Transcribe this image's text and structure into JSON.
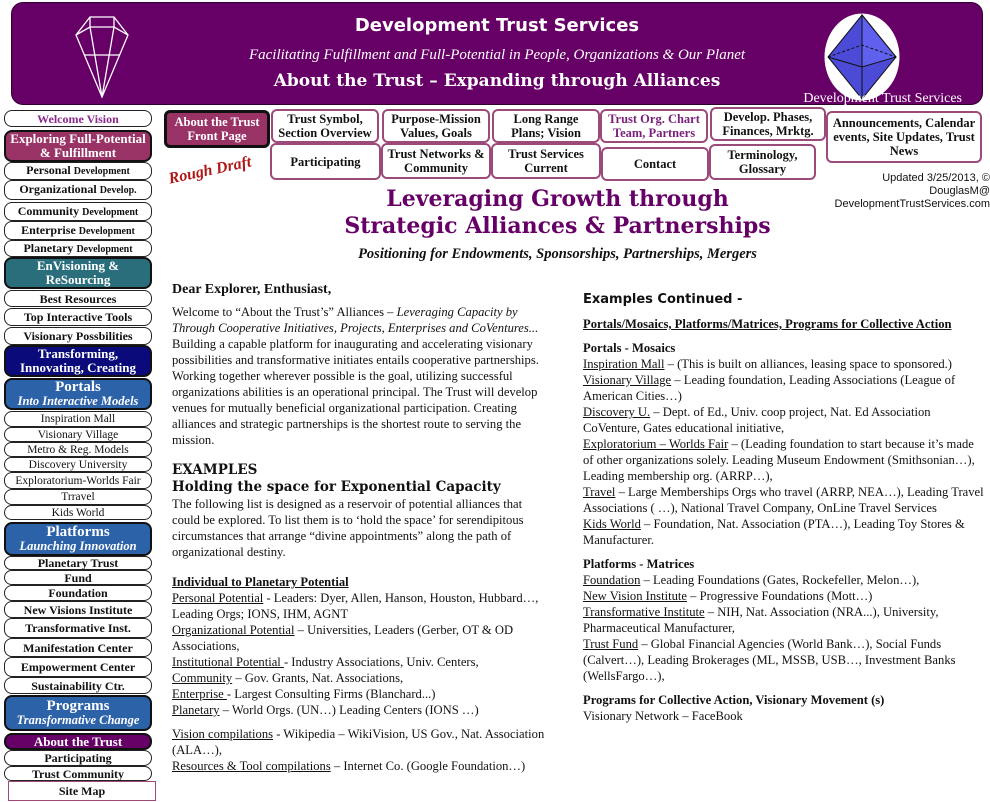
{
  "header": {
    "title": "Development Trust Services",
    "tagline": "Facilitating Fulfillment and Full-Potential in People, Organizations & Our Planet",
    "subtitle": "About the Trust – Expanding through Alliances",
    "brand": "Development Trust Services",
    "left_logo": "diamond-icon",
    "right_logo": "octahedron-icon",
    "color": "#660066"
  },
  "nav": [
    {
      "label": "About the Trust Front Page",
      "active": true
    },
    {
      "label": "Trust Symbol, Section Overview"
    },
    {
      "label": "Purpose-Mission Values, Goals"
    },
    {
      "label": "Long Range Plans; Vision"
    },
    {
      "label": "Trust Org. Chart Team, Partners"
    },
    {
      "label": "Develop. Phases, Finances, Mrktg."
    },
    {
      "label": "Announcements, Calendar events, Site Updates, Trust News"
    },
    {
      "label": "Participating"
    },
    {
      "label": "Trust Networks & Community"
    },
    {
      "label": "Trust Services Current"
    },
    {
      "label": "Contact"
    },
    {
      "label": "Terminology, Glossary"
    }
  ],
  "rough_draft": "Rough Draft",
  "updated": "Updated 3/25/2013, © DouglasM@ DevelopmentTrustServices.com",
  "sidebar": [
    {
      "label": "Welcome Vision",
      "style": "welcome"
    },
    {
      "label": "Exploring Full-Potential & Fulfillment",
      "style": "head",
      "color": "#993366"
    },
    {
      "label": "Personal",
      "small": "Development"
    },
    {
      "label": "Organizational",
      "small": "Develop."
    },
    {
      "label": "Community",
      "small": "Development"
    },
    {
      "label": "Enterprise",
      "small": "Development"
    },
    {
      "label": "Planetary",
      "small": "Development"
    },
    {
      "label": "EnVisioning & ReSourcing",
      "style": "head",
      "color": "#2a6e7c"
    },
    {
      "label": "Best Resources"
    },
    {
      "label": "Top Interactive Tools"
    },
    {
      "label": "Visionary Possbilities"
    },
    {
      "label": "Transforming, Innovating, Creating",
      "style": "head",
      "color": "#0a0a7a"
    },
    {
      "label": "Portals",
      "sub": "Into Interactive Models",
      "style": "big",
      "color": "#2c62a8"
    },
    {
      "label": "Inspiration Mall",
      "style": "plain"
    },
    {
      "label": "Visionary Village",
      "style": "plain"
    },
    {
      "label": "Metro & Reg. Models",
      "style": "plain"
    },
    {
      "label": "Discovery University",
      "style": "plain"
    },
    {
      "label": "Exploratorium-Worlds Fair",
      "style": "plain"
    },
    {
      "label": "Trravel",
      "style": "plain"
    },
    {
      "label": "Kids World",
      "style": "plain"
    },
    {
      "label": "Platforms",
      "sub": "Launching Innovation",
      "style": "big",
      "color": "#2c62a8"
    },
    {
      "label": "Planetary Trust"
    },
    {
      "label": "Fund"
    },
    {
      "label": "Foundation"
    },
    {
      "label": "New Visions Institute"
    },
    {
      "label": "Transformative Inst."
    },
    {
      "label": "Manifestation Center"
    },
    {
      "label": "Empowerment Center"
    },
    {
      "label": "Sustainability Ctr."
    },
    {
      "label": "Programs",
      "sub": "Transformative Change",
      "style": "big",
      "color": "#2c62a8"
    },
    {
      "label": "About the Trust",
      "style": "head",
      "color": "#660066"
    },
    {
      "label": "Participating"
    },
    {
      "label": "Trust Community"
    },
    {
      "label": "Site Map",
      "style": "sitemap"
    }
  ],
  "main": {
    "title_line1": "Leveraging Growth through",
    "title_line2": "Strategic Alliances & Partnerships",
    "subtitle": "Positioning for Endowments, Sponsorships, Partnerships, Mergers",
    "greeting": "Dear Explorer, Enthusiast,",
    "intro_plain": "Welcome to “About the Trust’s” Alliances – ",
    "intro_italic": "Leveraging Capacity by Through Cooperative Initiatives, Projects, Enterprises and CoVentures...",
    "intro_rest": "  Building a capable platform for inaugurating and accelerating visionary possibilities and transformative initiates entails cooperative partnerships. Working together wherever possible is the goal, utilizing successful organizations abilities is an operational principal. The Trust will develop venues for mutually beneficial organizational participation. Creating alliances and strategic partnerships is the shortest route to serving the mission.",
    "examples_heading": "EXAMPLES",
    "examples_subheading": "Holding the space for Exponential Capacity",
    "examples_text": "The following list is designed as a reservoir of potential alliances that could be explored. To list them is to ‘hold the space’ for serendipitous circumstances that arrange “divine appointments” along the path of organizational destiny.",
    "individual_heading": "Individual to Planetary Potential",
    "individual_items": [
      {
        "term": "Personal Potential",
        "text": " - Leaders: Dyer, Allen, Hanson, Houston, Hubbard…, Leading Orgs; IONS, IHM, AGNT"
      },
      {
        "term": "Organizational Potential",
        "text": " – Universities, Leaders (Gerber, OT & OD Associations,"
      },
      {
        "term": "Institutional Potential ",
        "text": " - Industry Associations, Univ. Centers,"
      },
      {
        "term": "Community",
        "text": " – Gov. Grants, Nat. Associations,"
      },
      {
        "term": "Enterprise ",
        "text": " - Largest Consulting Firms (Blanchard...)"
      },
      {
        "term": "Planetary",
        "text": " – World Orgs. (UN…) Leading Centers (IONS …)"
      }
    ],
    "compilations": [
      {
        "term": "Vision compilations",
        "text": " - Wikipedia – WikiVision, US Gov., Nat. Association (ALA…),"
      },
      {
        "term": "Resources & Tool compilations",
        "text": " – Internet Co. (Google Foundation…)"
      }
    ],
    "continued_heading": "Examples Continued -",
    "continued_sub": "Portals/Mosaics, Platforms/Matrices, Programs for Collective Action",
    "portals_heading": "Portals - Mosaics",
    "portals_items": [
      {
        "term": "Inspiration Mall",
        "text": " – (This is built on alliances, leasing space to sponsored.)"
      },
      {
        "term": "Visionary Village",
        "text": " – Leading foundation, Leading Associations (League of American Cities…)"
      },
      {
        "term": "Discovery U.",
        "text": " – Dept. of Ed.,  Univ. coop project, Nat.  Ed Association CoVenture, Gates educational initiative,"
      },
      {
        "term": "Exploratorium – Worlds Fair",
        "text": " – (Leading foundation to start because it’s made of other organizations solely. Leading Museum Endowment (Smithsonian…), Leading membership org. (ARRP…),"
      },
      {
        "term": "Travel",
        "text": " – Large Memberships Orgs who travel (ARRP, NEA…), Leading Travel Associations (  …),  National Travel Company, OnLine Travel Services"
      },
      {
        "term": "Kids World",
        "text": " – Foundation, Nat. Association (PTA…), Leading Toy Stores & Manufacturer."
      }
    ],
    "platforms_heading": "Platforms - Matrices",
    "platforms_items": [
      {
        "term": "Foundation",
        "text": " – Leading Foundations (Gates, Rockefeller, Melon…),"
      },
      {
        "term": "New Vision Institute",
        "text": " – Progressive Foundations (Mott…)"
      },
      {
        "term": "Transformative Institute",
        "text": " – NIH, Nat. Association  (NRA...), University, Pharmaceutical Manufacturer,"
      },
      {
        "term": "Trust Fund",
        "text": " – Global Financial Agencies (World Bank…), Social Funds (Calvert…), Leading Brokerages (ML, MSSB, USB…, Investment Banks (WellsFargo…),"
      }
    ],
    "programs_heading": "Programs for Collective Action, Visionary Movement (s)",
    "programs_text": "Visionary Network – FaceBook"
  }
}
